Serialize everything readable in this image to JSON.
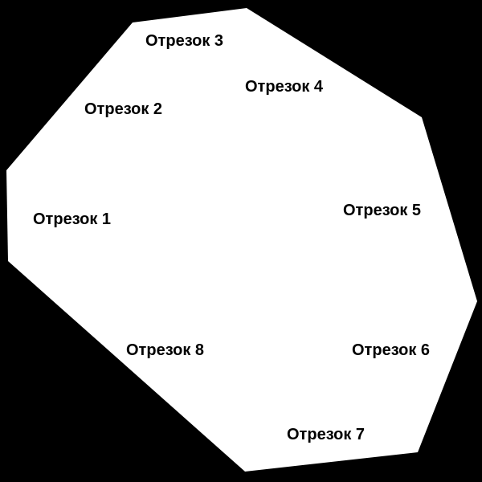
{
  "colors": {
    "background": "#000000",
    "shape_fill": "#ffffff",
    "label_text": "#000000"
  },
  "segments": [
    {
      "id": 1,
      "label": "Отрезок 1"
    },
    {
      "id": 2,
      "label": "Отрезок 2"
    },
    {
      "id": 3,
      "label": "Отрезок 3"
    },
    {
      "id": 4,
      "label": "Отрезок 4"
    },
    {
      "id": 5,
      "label": "Отрезок 5"
    },
    {
      "id": 6,
      "label": "Отрезок 6"
    },
    {
      "id": 7,
      "label": "Отрезок 7"
    },
    {
      "id": 8,
      "label": "Отрезок 8"
    }
  ]
}
